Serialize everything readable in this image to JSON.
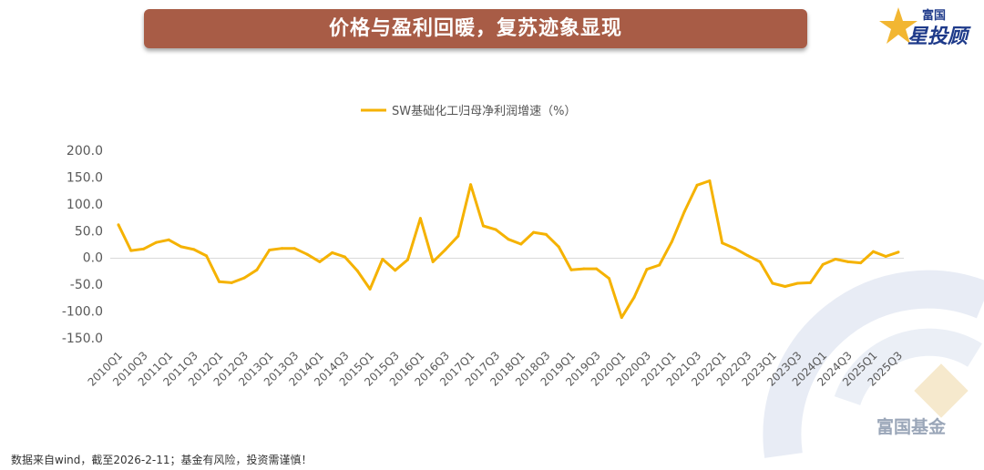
{
  "banner": {
    "title": "价格与盈利回暖，复苏迹象显现"
  },
  "brand": {
    "name_small": "富国",
    "name_big": "星投顾"
  },
  "watermark": {
    "text": "富国基金"
  },
  "footer": {
    "text": "数据来自wind，截至2026-2-11；基金有风险，投资需谨慎！"
  },
  "colors": {
    "banner": "#a85c46",
    "line": "#f5b200",
    "brand": "#1e3a8a"
  },
  "chart_data": {
    "type": "line",
    "title": "",
    "xlabel": "",
    "ylabel": "",
    "ylim": [
      -150,
      200
    ],
    "yticks": [
      "200.0",
      "150.0",
      "100.0",
      "50.0",
      "0.0",
      "-50.0",
      "-100.0",
      "-150.0"
    ],
    "ytick_values": [
      200,
      150,
      100,
      50,
      0,
      -50,
      -100,
      -150
    ],
    "grid": false,
    "legend_position": "top-center",
    "x": [
      "2010Q1",
      "2010Q2",
      "2010Q3",
      "2010Q4",
      "2011Q1",
      "2011Q2",
      "2011Q3",
      "2011Q4",
      "2012Q1",
      "2012Q2",
      "2012Q3",
      "2012Q4",
      "2013Q1",
      "2013Q2",
      "2013Q3",
      "2013Q4",
      "2014Q1",
      "2014Q2",
      "2014Q3",
      "2014Q4",
      "2015Q1",
      "2015Q2",
      "2015Q3",
      "2015Q4",
      "2016Q1",
      "2016Q2",
      "2016Q3",
      "2016Q4",
      "2017Q1",
      "2017Q2",
      "2017Q3",
      "2017Q4",
      "2018Q1",
      "2018Q2",
      "2018Q3",
      "2018Q4",
      "2019Q1",
      "2019Q2",
      "2019Q3",
      "2019Q4",
      "2020Q1",
      "2020Q2",
      "2020Q3",
      "2020Q4",
      "2021Q1",
      "2021Q2",
      "2021Q3",
      "2021Q4",
      "2022Q1",
      "2022Q2",
      "2022Q3",
      "2022Q4",
      "2023Q1",
      "2023Q2",
      "2023Q3",
      "2023Q4",
      "2024Q1",
      "2024Q2",
      "2024Q3",
      "2024Q4",
      "2025Q1",
      "2025Q2",
      "2025Q3"
    ],
    "xtick_labels": [
      "2010Q1",
      "2010Q3",
      "2011Q1",
      "2011Q3",
      "2012Q1",
      "2012Q3",
      "2013Q1",
      "2013Q3",
      "2014Q1",
      "2014Q3",
      "2015Q1",
      "2015Q3",
      "2016Q1",
      "2016Q3",
      "2017Q1",
      "2017Q3",
      "2018Q1",
      "2018Q3",
      "2019Q1",
      "2019Q3",
      "2020Q1",
      "2020Q3",
      "2021Q1",
      "2021Q3",
      "2022Q1",
      "2022Q3",
      "2023Q1",
      "2023Q3",
      "2024Q1",
      "2024Q3",
      "2025Q1",
      "2025Q3"
    ],
    "series": [
      {
        "name": "SW基础化工归母净利润增速（%）",
        "color": "#f5b200",
        "values": [
          61,
          13,
          16,
          28,
          33,
          20,
          15,
          3,
          -45,
          -47,
          -38,
          -23,
          14,
          17,
          17,
          6,
          -8,
          9,
          1,
          -25,
          -59,
          -3,
          -24,
          -4,
          73,
          -8,
          15,
          40,
          136,
          59,
          52,
          34,
          25,
          47,
          43,
          20,
          -23,
          -21,
          -21,
          -39,
          -112,
          -74,
          -22,
          -14,
          30,
          86,
          135,
          143,
          27,
          17,
          4,
          -8,
          -48,
          -54,
          -48,
          -47,
          -13,
          -3,
          -8,
          -10,
          11,
          2,
          10
        ]
      }
    ]
  }
}
